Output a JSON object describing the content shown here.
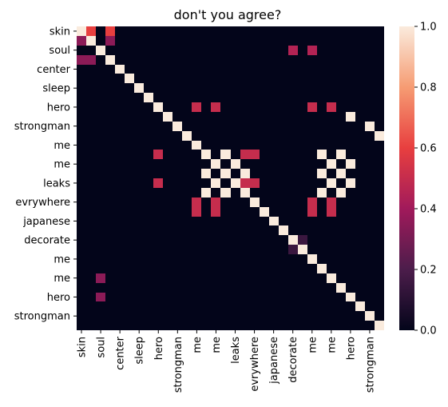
{
  "chart_data": {
    "type": "heatmap",
    "title": "don't you agree?",
    "xlabel": "",
    "ylabel": "",
    "labels": [
      "skin",
      "",
      "soul",
      "",
      "center",
      "",
      "sleep",
      "",
      "hero",
      "",
      "strongman",
      "",
      "me",
      "",
      "me",
      "",
      "leaks",
      "",
      "evrywhere",
      "",
      "japanese",
      "",
      "decorate",
      "",
      "me",
      "",
      "me",
      "",
      "hero",
      "",
      "strongman",
      ""
    ],
    "matrix": [
      [
        1,
        0.6,
        0,
        0.6,
        0,
        0,
        0,
        0,
        0,
        0,
        0,
        0,
        0,
        0,
        0,
        0,
        0,
        0,
        0,
        0,
        0,
        0,
        0,
        0,
        0,
        0,
        0,
        0,
        0,
        0,
        0,
        0
      ],
      [
        0.35,
        1,
        0,
        0.35,
        0,
        0,
        0,
        0,
        0,
        0,
        0,
        0,
        0,
        0,
        0,
        0,
        0,
        0,
        0,
        0,
        0,
        0,
        0,
        0,
        0,
        0,
        0,
        0,
        0,
        0,
        0,
        0
      ],
      [
        0,
        0,
        1,
        0,
        0,
        0,
        0,
        0,
        0,
        0,
        0,
        0,
        0,
        0,
        0,
        0,
        0,
        0,
        0,
        0,
        0,
        0,
        0.45,
        0,
        0.45,
        0,
        0,
        0,
        0,
        0,
        0,
        0
      ],
      [
        0.35,
        0.35,
        0,
        1,
        0,
        0,
        0,
        0,
        0,
        0,
        0,
        0,
        0,
        0,
        0,
        0,
        0,
        0,
        0,
        0,
        0,
        0,
        0,
        0,
        0,
        0,
        0,
        0,
        0,
        0,
        0,
        0
      ],
      [
        0,
        0,
        0,
        0,
        1,
        0,
        0,
        0,
        0,
        0,
        0,
        0,
        0,
        0,
        0,
        0,
        0,
        0,
        0,
        0,
        0,
        0,
        0,
        0,
        0,
        0,
        0,
        0,
        0,
        0,
        0,
        0
      ],
      [
        0,
        0,
        0,
        0,
        0,
        1,
        0,
        0,
        0,
        0,
        0,
        0,
        0,
        0,
        0,
        0,
        0,
        0,
        0,
        0,
        0,
        0,
        0,
        0,
        0,
        0,
        0,
        0,
        0,
        0,
        0,
        0
      ],
      [
        0,
        0,
        0,
        0,
        0,
        0,
        1,
        0,
        0,
        0,
        0,
        0,
        0,
        0,
        0,
        0,
        0,
        0,
        0,
        0,
        0,
        0,
        0,
        0,
        0,
        0,
        0,
        0,
        0,
        0,
        0,
        0
      ],
      [
        0,
        0,
        0,
        0,
        0,
        0,
        0,
        1,
        0,
        0,
        0,
        0,
        0,
        0,
        0,
        0,
        0,
        0,
        0,
        0,
        0,
        0,
        0,
        0,
        0,
        0,
        0,
        0,
        0,
        0,
        0,
        0
      ],
      [
        0,
        0,
        0,
        0,
        0,
        0,
        0,
        0,
        1,
        0,
        0,
        0,
        0.5,
        0,
        0.5,
        0,
        0,
        0,
        0,
        0,
        0,
        0,
        0,
        0,
        0.5,
        0,
        0.5,
        0,
        0,
        0,
        0,
        0
      ],
      [
        0,
        0,
        0,
        0,
        0,
        0,
        0,
        0,
        0,
        1,
        0,
        0,
        0,
        0,
        0,
        0,
        0,
        0,
        0,
        0,
        0,
        0,
        0,
        0,
        0,
        0,
        0,
        0,
        1,
        0,
        0,
        0
      ],
      [
        0,
        0,
        0,
        0,
        0,
        0,
        0,
        0,
        0,
        0,
        1,
        0,
        0,
        0,
        0,
        0,
        0,
        0,
        0,
        0,
        0,
        0,
        0,
        0,
        0,
        0,
        0,
        0,
        0,
        0,
        1,
        0
      ],
      [
        0,
        0,
        0,
        0,
        0,
        0,
        0,
        0,
        0,
        0,
        0,
        1,
        0,
        0,
        0,
        0,
        0,
        0,
        0,
        0,
        0,
        0,
        0,
        0,
        0,
        0,
        0,
        0,
        0,
        0,
        0,
        1
      ],
      [
        0,
        0,
        0,
        0,
        0,
        0,
        0,
        0,
        0,
        0,
        0,
        0,
        1,
        0,
        0,
        0,
        0,
        0,
        0,
        0,
        0,
        0,
        0,
        0,
        0,
        0,
        0,
        0,
        0,
        0,
        0,
        0
      ],
      [
        0,
        0,
        0,
        0,
        0,
        0,
        0,
        0,
        0.5,
        0,
        0,
        0,
        0,
        1,
        0,
        1,
        0,
        0.5,
        0.5,
        0,
        0,
        0,
        0,
        0,
        0,
        1,
        0,
        1,
        0,
        0,
        0,
        0
      ],
      [
        0,
        0,
        0,
        0,
        0,
        0,
        0,
        0,
        0,
        0,
        0,
        0,
        0,
        0,
        1,
        0,
        1,
        0,
        0,
        0,
        0,
        0,
        0,
        0,
        0,
        0,
        1,
        0,
        1,
        0,
        0,
        0
      ],
      [
        0,
        0,
        0,
        0,
        0,
        0,
        0,
        0,
        0,
        0,
        0,
        0,
        0,
        1,
        0,
        1,
        0,
        1,
        0,
        0,
        0,
        0,
        0,
        0,
        0,
        1,
        0,
        1,
        0,
        0,
        0,
        0
      ],
      [
        0,
        0,
        0,
        0,
        0,
        0,
        0,
        0,
        0.5,
        0,
        0,
        0,
        0,
        0,
        1,
        0,
        1,
        0.5,
        0.5,
        0,
        0,
        0,
        0,
        0,
        0,
        0,
        1,
        0,
        1,
        0,
        0,
        0
      ],
      [
        0,
        0,
        0,
        0,
        0,
        0,
        0,
        0,
        0,
        0,
        0,
        0,
        0,
        1,
        0,
        1,
        0,
        1,
        0,
        0,
        0,
        0,
        0,
        0,
        0,
        1,
        0,
        1,
        0,
        0,
        0,
        0
      ],
      [
        0,
        0,
        0,
        0,
        0,
        0,
        0,
        0,
        0,
        0,
        0,
        0,
        0.5,
        0,
        0.5,
        0,
        0,
        0,
        1,
        0,
        0,
        0,
        0,
        0,
        0.5,
        0,
        0.5,
        0,
        0,
        0,
        0,
        0
      ],
      [
        0,
        0,
        0,
        0,
        0,
        0,
        0,
        0,
        0,
        0,
        0,
        0,
        0.5,
        0,
        0.5,
        0,
        0,
        0,
        0,
        1,
        0,
        0,
        0,
        0,
        0.5,
        0,
        0.5,
        0,
        0,
        0,
        0,
        0
      ],
      [
        0,
        0,
        0,
        0,
        0,
        0,
        0,
        0,
        0,
        0,
        0,
        0,
        0,
        0,
        0,
        0,
        0,
        0,
        0,
        0,
        1,
        0,
        0,
        0,
        0,
        0,
        0,
        0,
        0,
        0,
        0,
        0
      ],
      [
        0,
        0,
        0,
        0,
        0,
        0,
        0,
        0,
        0,
        0,
        0,
        0,
        0,
        0,
        0,
        0,
        0,
        0,
        0,
        0,
        0,
        1,
        0,
        0,
        0,
        0,
        0,
        0,
        0,
        0,
        0,
        0
      ],
      [
        0,
        0,
        0,
        0,
        0,
        0,
        0,
        0,
        0,
        0,
        0,
        0,
        0,
        0,
        0,
        0,
        0,
        0,
        0,
        0,
        0,
        0,
        1,
        0.15,
        0,
        0,
        0,
        0,
        0,
        0,
        0,
        0
      ],
      [
        0,
        0,
        0,
        0,
        0,
        0,
        0,
        0,
        0,
        0,
        0,
        0,
        0,
        0,
        0,
        0,
        0,
        0,
        0,
        0,
        0,
        0,
        0.15,
        1,
        0,
        0,
        0,
        0,
        0,
        0,
        0,
        0
      ],
      [
        0,
        0,
        0,
        0,
        0,
        0,
        0,
        0,
        0,
        0,
        0,
        0,
        0,
        0,
        0,
        0,
        0,
        0,
        0,
        0,
        0,
        0,
        0,
        0,
        1,
        0,
        0,
        0,
        0,
        0,
        0,
        0
      ],
      [
        0,
        0,
        0,
        0,
        0,
        0,
        0,
        0,
        0,
        0,
        0,
        0,
        0,
        0,
        0,
        0,
        0,
        0,
        0,
        0,
        0,
        0,
        0,
        0,
        0,
        1,
        0,
        0,
        0,
        0,
        0,
        0
      ],
      [
        0,
        0,
        0.35,
        0,
        0,
        0,
        0,
        0,
        0,
        0,
        0,
        0,
        0,
        0,
        0,
        0,
        0,
        0,
        0,
        0,
        0,
        0,
        0,
        0,
        0,
        0,
        1,
        0,
        0,
        0,
        0,
        0
      ],
      [
        0,
        0,
        0,
        0,
        0,
        0,
        0,
        0,
        0,
        0,
        0,
        0,
        0,
        0,
        0,
        0,
        0,
        0,
        0,
        0,
        0,
        0,
        0,
        0,
        0,
        0,
        0,
        1,
        0,
        0,
        0,
        0
      ],
      [
        0,
        0,
        0.35,
        0,
        0,
        0,
        0,
        0,
        0,
        0,
        0,
        0,
        0,
        0,
        0,
        0,
        0,
        0,
        0,
        0,
        0,
        0,
        0,
        0,
        0,
        0,
        0,
        0,
        1,
        0,
        0,
        0
      ],
      [
        0,
        0,
        0,
        0,
        0,
        0,
        0,
        0,
        0,
        0,
        0,
        0,
        0,
        0,
        0,
        0,
        0,
        0,
        0,
        0,
        0,
        0,
        0,
        0,
        0,
        0,
        0,
        0,
        0,
        1,
        0,
        0
      ],
      [
        0,
        0,
        0,
        0,
        0,
        0,
        0,
        0,
        0,
        0,
        0,
        0,
        0,
        0,
        0,
        0,
        0,
        0,
        0,
        0,
        0,
        0,
        0,
        0,
        0,
        0,
        0,
        0,
        0,
        0,
        1,
        0
      ],
      [
        0,
        0,
        0,
        0,
        0,
        0,
        0,
        0,
        0,
        0,
        0,
        0,
        0,
        0,
        0,
        0,
        0,
        0,
        0,
        0,
        0,
        0,
        0,
        0,
        0,
        0,
        0,
        0,
        0,
        0,
        0,
        1
      ]
    ],
    "colorbar": {
      "min": 0,
      "max": 1,
      "ticks": [
        "0.0",
        "0.2",
        "0.4",
        "0.6",
        "0.8",
        "1.0"
      ],
      "colormap": "rocket",
      "stops": [
        "#03051a",
        "#4c1d4b",
        "#a11a5b",
        "#e83f3f",
        "#f69c73",
        "#faebdd"
      ]
    }
  }
}
